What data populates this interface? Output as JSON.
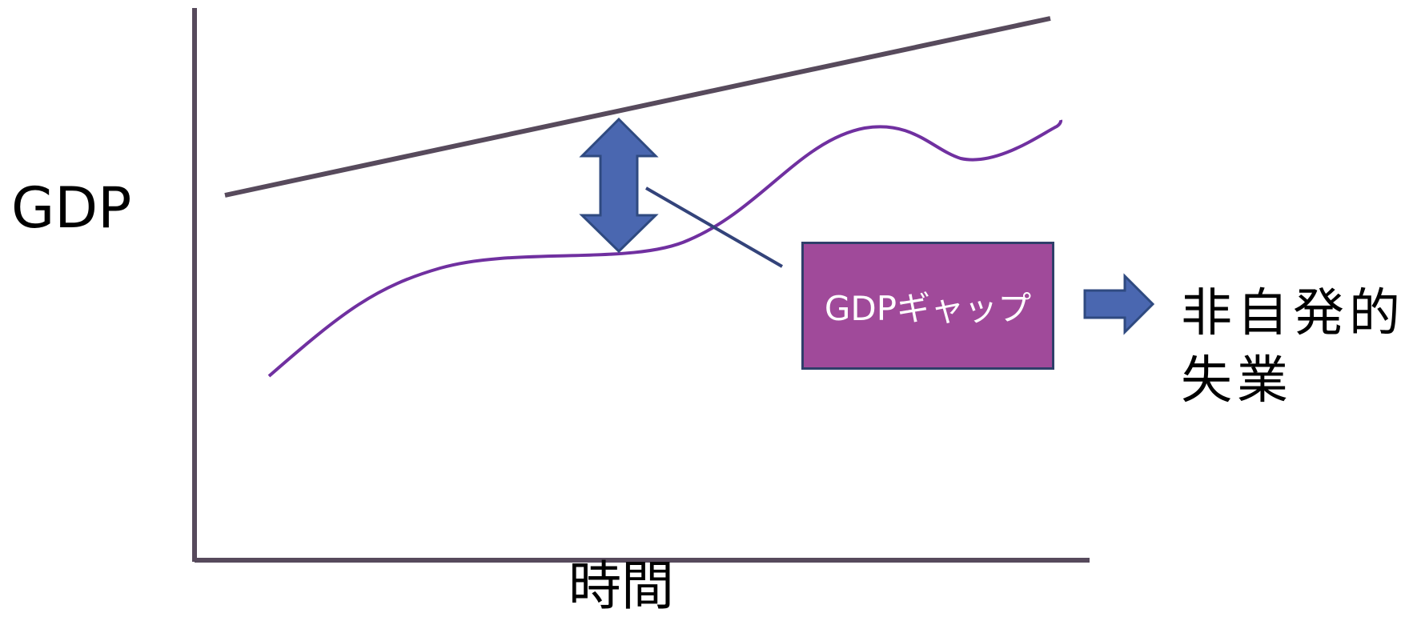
{
  "axes": {
    "y_label": "GDP",
    "x_label": "時間"
  },
  "gap_box": {
    "label": "GDPギャップ",
    "fill_color": "#a04a9a",
    "border_color": "#2f3f6a"
  },
  "outcome": {
    "line1": "非自発的",
    "line2": "失業"
  },
  "colors": {
    "axis": "#574a5c",
    "potential_gdp_line": "#574a5c",
    "actual_gdp_curve": "#7030a0",
    "arrow_fill": "#4a67b0",
    "arrow_stroke": "#2f4a80",
    "connector_line": "#33437a"
  }
}
